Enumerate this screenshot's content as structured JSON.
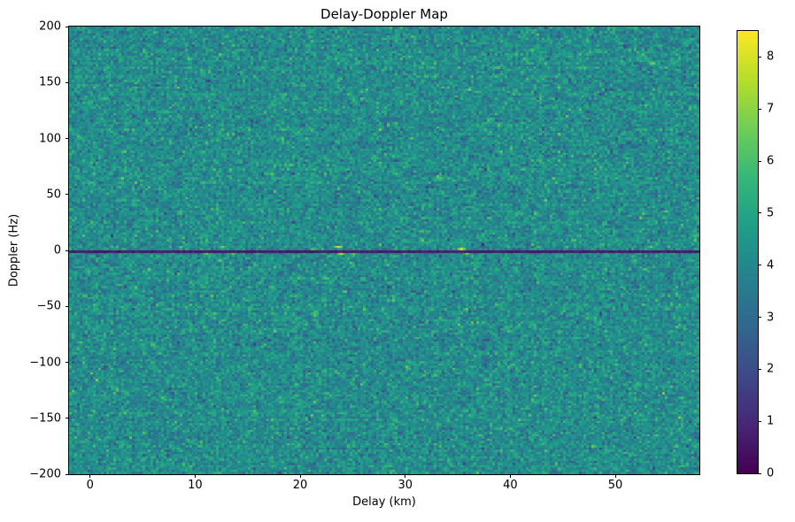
{
  "chart_data": {
    "type": "heatmap",
    "title": "Delay-Doppler Map",
    "xlabel": "Delay (km)",
    "ylabel": "Doppler (Hz)",
    "x_range": [
      -2,
      58
    ],
    "y_range": [
      -200,
      200
    ],
    "x_ticks": [
      0,
      10,
      20,
      30,
      40,
      50
    ],
    "y_ticks": [
      -200,
      -150,
      -100,
      -50,
      0,
      50,
      100,
      150,
      200
    ],
    "colormap": "viridis",
    "vmin": 0,
    "vmax": 8.5,
    "colorbar_ticks": [
      0,
      1,
      2,
      3,
      4,
      5,
      6,
      7,
      8
    ],
    "grid": {
      "cols": 240,
      "rows": 202
    },
    "noise": {
      "mean": 4.15,
      "std": 0.72,
      "seed": 42
    },
    "zero_doppler_line": {
      "doppler": 0,
      "value": 0.35
    },
    "bright_spots": [
      {
        "delay": 2.0,
        "doppler": 2,
        "value": 5.9
      },
      {
        "delay": 8.5,
        "doppler": 2,
        "value": 6.4
      },
      {
        "delay": 11.0,
        "doppler": -3,
        "value": 6.6
      },
      {
        "delay": 12.5,
        "doppler": 2,
        "value": 6.9
      },
      {
        "delay": 13.5,
        "doppler": -2,
        "value": 6.4
      },
      {
        "delay": 16.0,
        "doppler": 2,
        "value": 6.0
      },
      {
        "delay": 23.5,
        "doppler": 2,
        "value": 8.5
      },
      {
        "delay": 23.8,
        "doppler": -3,
        "value": 7.8
      },
      {
        "delay": 25.0,
        "doppler": -2,
        "value": 6.5
      },
      {
        "delay": 35.3,
        "doppler": 1,
        "value": 8.0
      },
      {
        "delay": 36.0,
        "doppler": -2,
        "value": 6.7
      },
      {
        "delay": 40.0,
        "doppler": 2,
        "value": 5.9
      },
      {
        "delay": 45.5,
        "doppler": 2,
        "value": 6.2
      },
      {
        "delay": 53.5,
        "doppler": 2,
        "value": 6.8
      }
    ]
  }
}
